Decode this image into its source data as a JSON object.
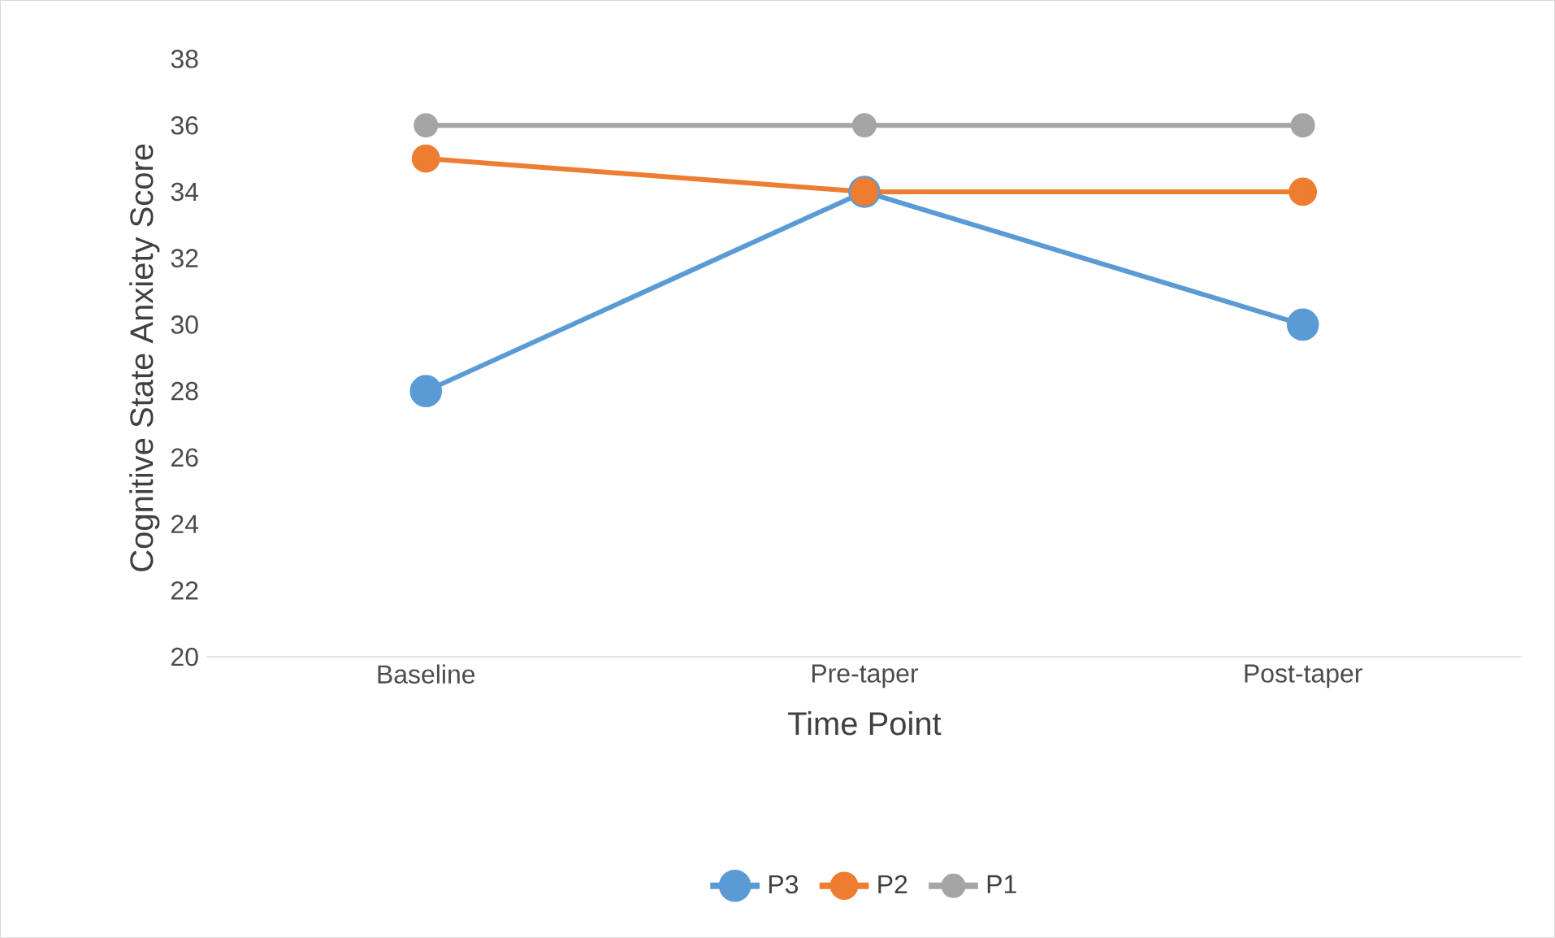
{
  "chart_data": {
    "type": "line",
    "xlabel": "Time Point",
    "ylabel": "Cognitive State Anxiety Score",
    "categories": [
      "Baseline",
      "Pre-taper",
      "Post-taper"
    ],
    "series": [
      {
        "name": "P3",
        "color": "#5b9bd5",
        "values": [
          28,
          34,
          30
        ]
      },
      {
        "name": "P2",
        "color": "#ed7d31",
        "values": [
          35,
          34,
          34
        ]
      },
      {
        "name": "P1",
        "color": "#a5a5a5",
        "values": [
          36,
          36,
          36
        ]
      }
    ],
    "ylim": [
      20,
      38
    ],
    "yticks": [
      20,
      22,
      24,
      26,
      28,
      30,
      32,
      34,
      36,
      38
    ],
    "legend": "bottom",
    "marker": "circle"
  }
}
